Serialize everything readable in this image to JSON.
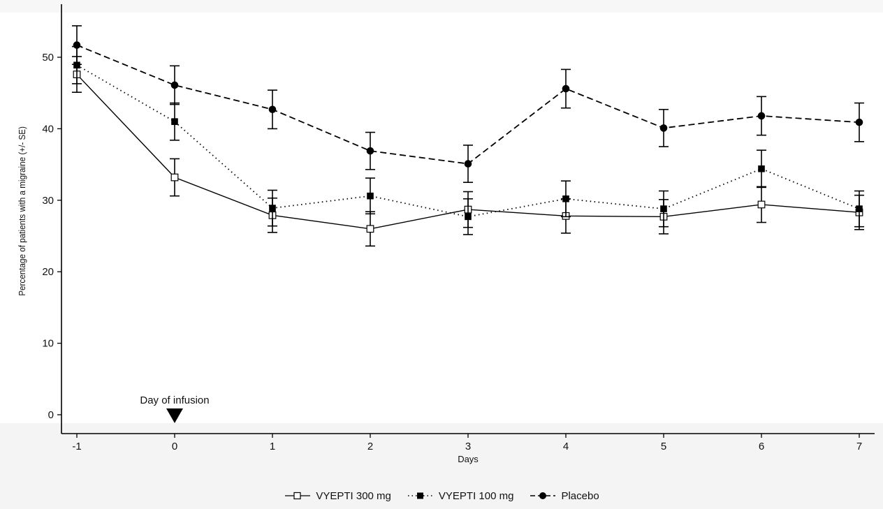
{
  "chart_data": {
    "type": "line",
    "xlabel": "Days",
    "ylabel": "Percentage of patients with a migraine (+/- SE)",
    "x": [
      -1,
      0,
      1,
      2,
      3,
      4,
      5,
      6,
      7
    ],
    "xlim": [
      -1,
      7
    ],
    "ylim": [
      0,
      55
    ],
    "xticks": [
      "-1",
      "0",
      "1",
      "2",
      "3",
      "4",
      "5",
      "6",
      "7"
    ],
    "yticks": [
      "0",
      "10",
      "20",
      "30",
      "40",
      "50"
    ],
    "annotation": {
      "text": "Day of infusion",
      "x": 0
    },
    "legend_position": "bottom",
    "grid": false,
    "series": [
      {
        "name": "VYEPTI 300 mg",
        "marker": "open-square",
        "line": "solid",
        "values": [
          47.6,
          33.2,
          27.9,
          26.0,
          28.7,
          27.8,
          27.7,
          29.4,
          28.3
        ],
        "se": [
          2.5,
          2.6,
          2.4,
          2.4,
          2.5,
          2.4,
          2.4,
          2.5,
          2.4
        ]
      },
      {
        "name": "VYEPTI 100 mg",
        "marker": "filled-square",
        "line": "dotted",
        "values": [
          48.9,
          41.0,
          28.9,
          30.6,
          27.7,
          30.2,
          28.8,
          34.4,
          28.8
        ],
        "se": [
          2.6,
          2.6,
          2.5,
          2.5,
          2.5,
          2.5,
          2.5,
          2.6,
          2.5
        ]
      },
      {
        "name": "Placebo",
        "marker": "filled-circle",
        "line": "dashed",
        "values": [
          51.7,
          46.1,
          42.7,
          36.9,
          35.1,
          45.6,
          40.1,
          41.8,
          40.9
        ],
        "se": [
          2.7,
          2.7,
          2.7,
          2.6,
          2.6,
          2.7,
          2.6,
          2.7,
          2.7
        ]
      }
    ]
  }
}
